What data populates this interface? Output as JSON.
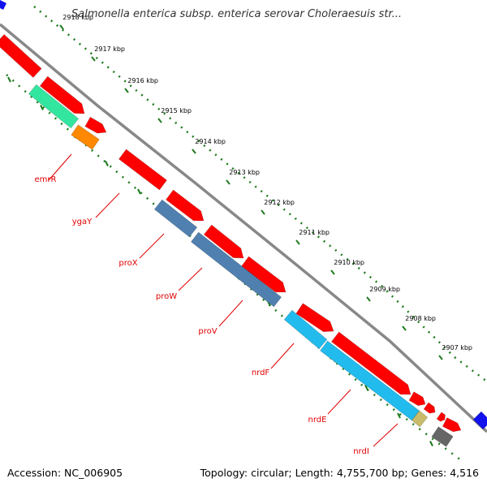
{
  "title": "Salmonella enterica subsp. enterica serovar Choleraesuis str...",
  "footer": {
    "accession": "Accession: NC_006905",
    "summary": "Topology: circular; Length: 4,755,700 bp; Genes: 4,516"
  },
  "scale_labels": [
    "2918 kbp",
    "2917 kbp",
    "2916 kbp",
    "2915 kbp",
    "2914 kbp",
    "2913 kbp",
    "2912 kbp",
    "2911 kbp",
    "2910 kbp",
    "2909 kbp",
    "2908 kbp",
    "2907 kbp"
  ],
  "gene_labels": [
    "emrR",
    "ygaY",
    "proX",
    "proW",
    "proV",
    "nrdF",
    "nrdE",
    "nrdI"
  ],
  "colors": {
    "backbone": "#888888",
    "cds": "#ff0000",
    "tick": "#1e7a1e",
    "label": "#e00000",
    "cog_teal": "#33e6a0",
    "cog_orange": "#ff8800",
    "cog_steel": "#4f80b0",
    "cog_cyan": "#22bbee",
    "cog_khaki": "#c8bb6a",
    "cog_gray": "#666666",
    "cog_blue": "#1111ee"
  }
}
